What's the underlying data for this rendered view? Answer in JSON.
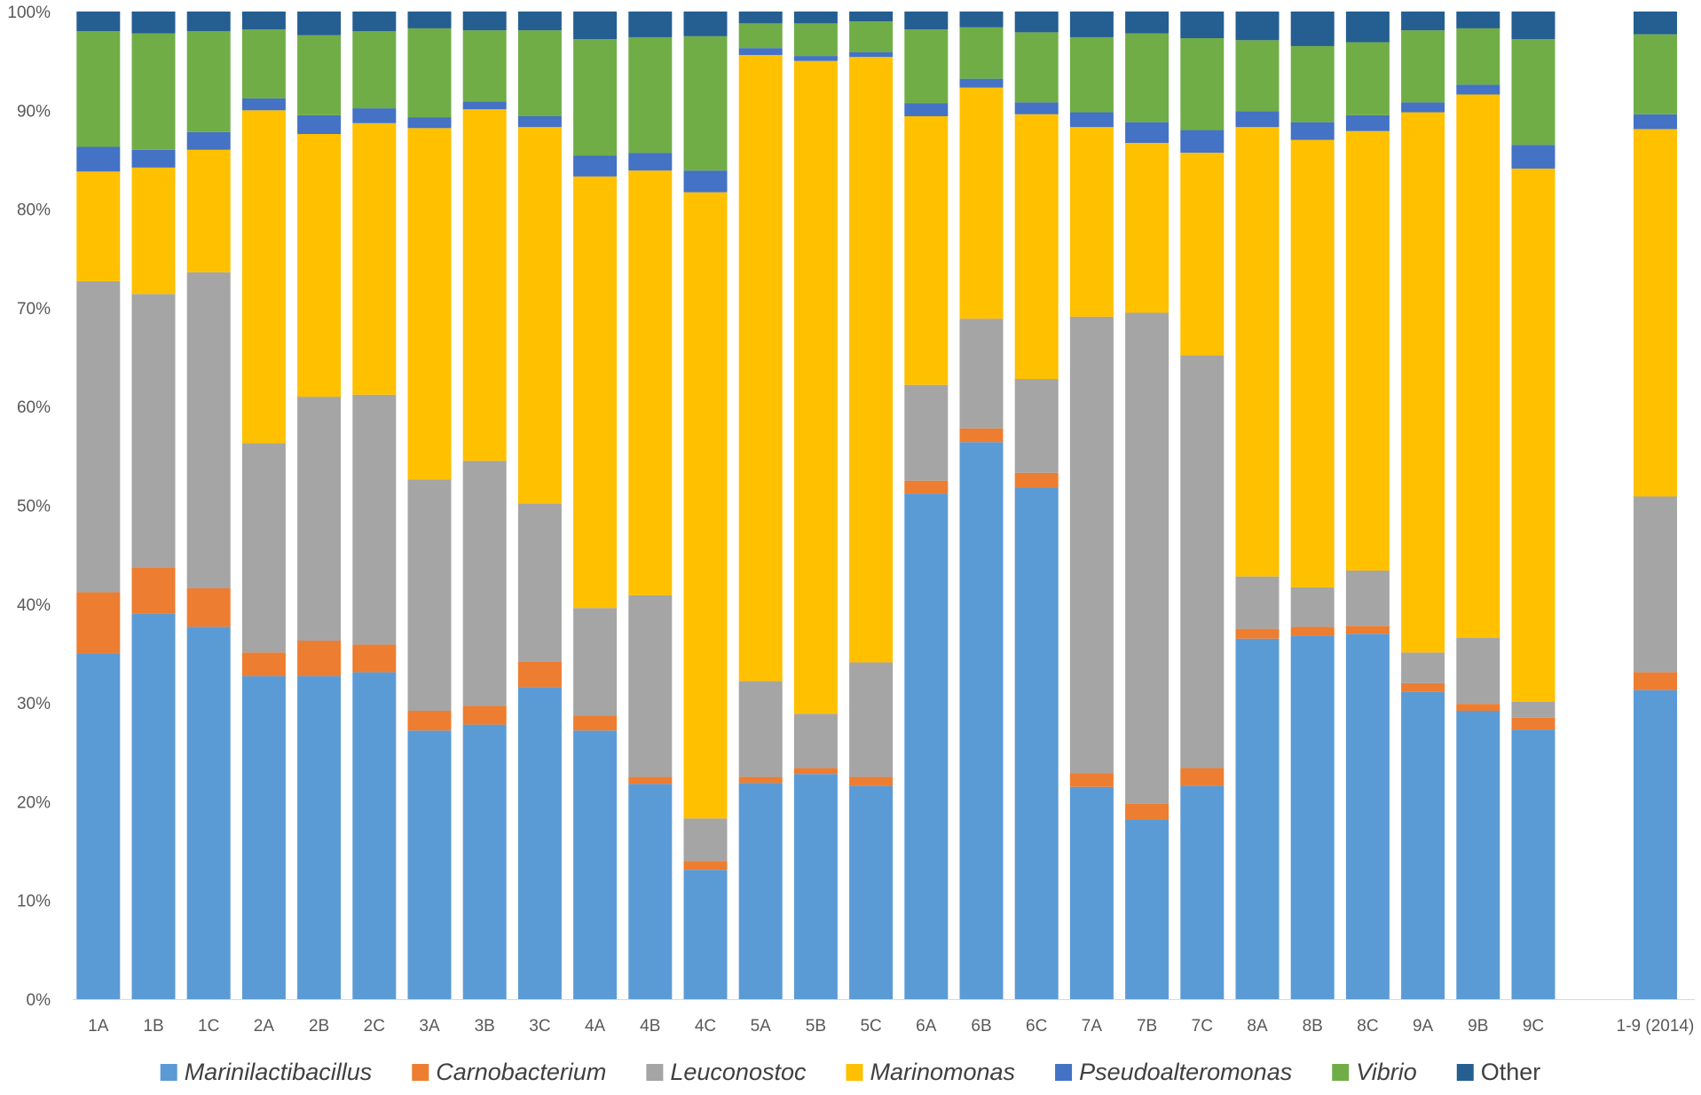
{
  "chart_data": {
    "type": "bar",
    "stacked": true,
    "normalized_percent": true,
    "title": "",
    "xlabel": "",
    "ylabel": "",
    "ylim": [
      0,
      100
    ],
    "y_ticks": [
      "0%",
      "10%",
      "20%",
      "30%",
      "40%",
      "50%",
      "60%",
      "70%",
      "80%",
      "90%",
      "100%"
    ],
    "y_tick_values": [
      0,
      10,
      20,
      30,
      40,
      50,
      60,
      70,
      80,
      90,
      100
    ],
    "grid": false,
    "legend_position": "bottom",
    "categories": [
      "1A",
      "1B",
      "1C",
      "2A",
      "2B",
      "2C",
      "3A",
      "3B",
      "3C",
      "4A",
      "4B",
      "4C",
      "5A",
      "5B",
      "5C",
      "6A",
      "6B",
      "6C",
      "7A",
      "7B",
      "7C",
      "8A",
      "8B",
      "8C",
      "9A",
      "9B",
      "9C",
      "1-9 (2014)"
    ],
    "gap_before_last": true,
    "series": [
      {
        "name": "Marinilactibacillus",
        "italic": true,
        "color": "#5B9BD5",
        "values": [
          35.0,
          39.0,
          37.7,
          32.7,
          32.7,
          33.1,
          27.2,
          27.8,
          31.6,
          27.2,
          21.8,
          13.1,
          21.9,
          22.8,
          21.6,
          51.2,
          56.4,
          51.8,
          21.5,
          18.2,
          21.6,
          36.5,
          36.8,
          37.0,
          31.1,
          29.2,
          27.3,
          31.3
        ]
      },
      {
        "name": "Carnobacterium",
        "italic": true,
        "color": "#ED7D31",
        "values": [
          6.2,
          4.7,
          3.9,
          2.4,
          3.6,
          2.8,
          2.0,
          1.9,
          2.6,
          1.5,
          0.7,
          0.9,
          0.6,
          0.6,
          0.9,
          1.3,
          1.4,
          1.5,
          1.4,
          1.6,
          1.8,
          1.0,
          0.9,
          0.8,
          0.9,
          0.7,
          1.2,
          1.8
        ]
      },
      {
        "name": "Leuconostoc",
        "italic": true,
        "color": "#A5A5A5",
        "values": [
          31.5,
          27.7,
          32.0,
          21.2,
          24.7,
          25.3,
          23.4,
          24.8,
          16.0,
          10.9,
          18.4,
          4.3,
          9.7,
          5.5,
          11.6,
          9.7,
          11.1,
          9.5,
          46.2,
          49.7,
          41.8,
          5.3,
          4.0,
          5.6,
          3.1,
          6.7,
          1.6,
          17.8
        ]
      },
      {
        "name": "Marinomonas",
        "italic": true,
        "color": "#FFC000",
        "values": [
          11.1,
          12.8,
          12.4,
          33.7,
          26.6,
          27.5,
          35.6,
          35.6,
          38.1,
          43.7,
          43.0,
          63.4,
          63.4,
          66.1,
          61.3,
          27.2,
          23.4,
          26.8,
          19.2,
          17.2,
          20.5,
          45.5,
          45.3,
          44.5,
          54.7,
          55.0,
          54.0,
          37.2
        ]
      },
      {
        "name": "Pseudoalteromonas",
        "italic": true,
        "color": "#4472C4",
        "values": [
          2.5,
          1.8,
          1.8,
          1.2,
          1.9,
          1.5,
          1.1,
          0.8,
          1.1,
          2.1,
          1.8,
          2.2,
          0.7,
          0.5,
          0.5,
          1.3,
          0.9,
          1.2,
          1.5,
          2.1,
          2.3,
          1.6,
          1.8,
          1.6,
          1.0,
          1.0,
          2.4,
          1.5
        ]
      },
      {
        "name": "Vibrio",
        "italic": true,
        "color": "#70AD47",
        "values": [
          11.7,
          11.8,
          10.2,
          7.0,
          8.1,
          7.8,
          9.0,
          7.2,
          8.7,
          11.8,
          11.7,
          13.6,
          2.5,
          3.3,
          3.1,
          7.5,
          5.2,
          7.1,
          7.6,
          9.0,
          9.3,
          7.2,
          7.7,
          7.4,
          7.3,
          5.7,
          10.7,
          8.1
        ]
      },
      {
        "name": "Other",
        "italic": false,
        "color": "#255E91",
        "values": [
          2.0,
          2.2,
          2.0,
          1.8,
          2.4,
          2.0,
          1.7,
          1.9,
          1.9,
          2.8,
          2.6,
          2.5,
          1.2,
          1.2,
          1.0,
          1.8,
          1.6,
          2.1,
          2.6,
          2.2,
          2.7,
          2.9,
          3.5,
          3.1,
          1.9,
          1.7,
          2.8,
          2.3
        ]
      }
    ]
  }
}
